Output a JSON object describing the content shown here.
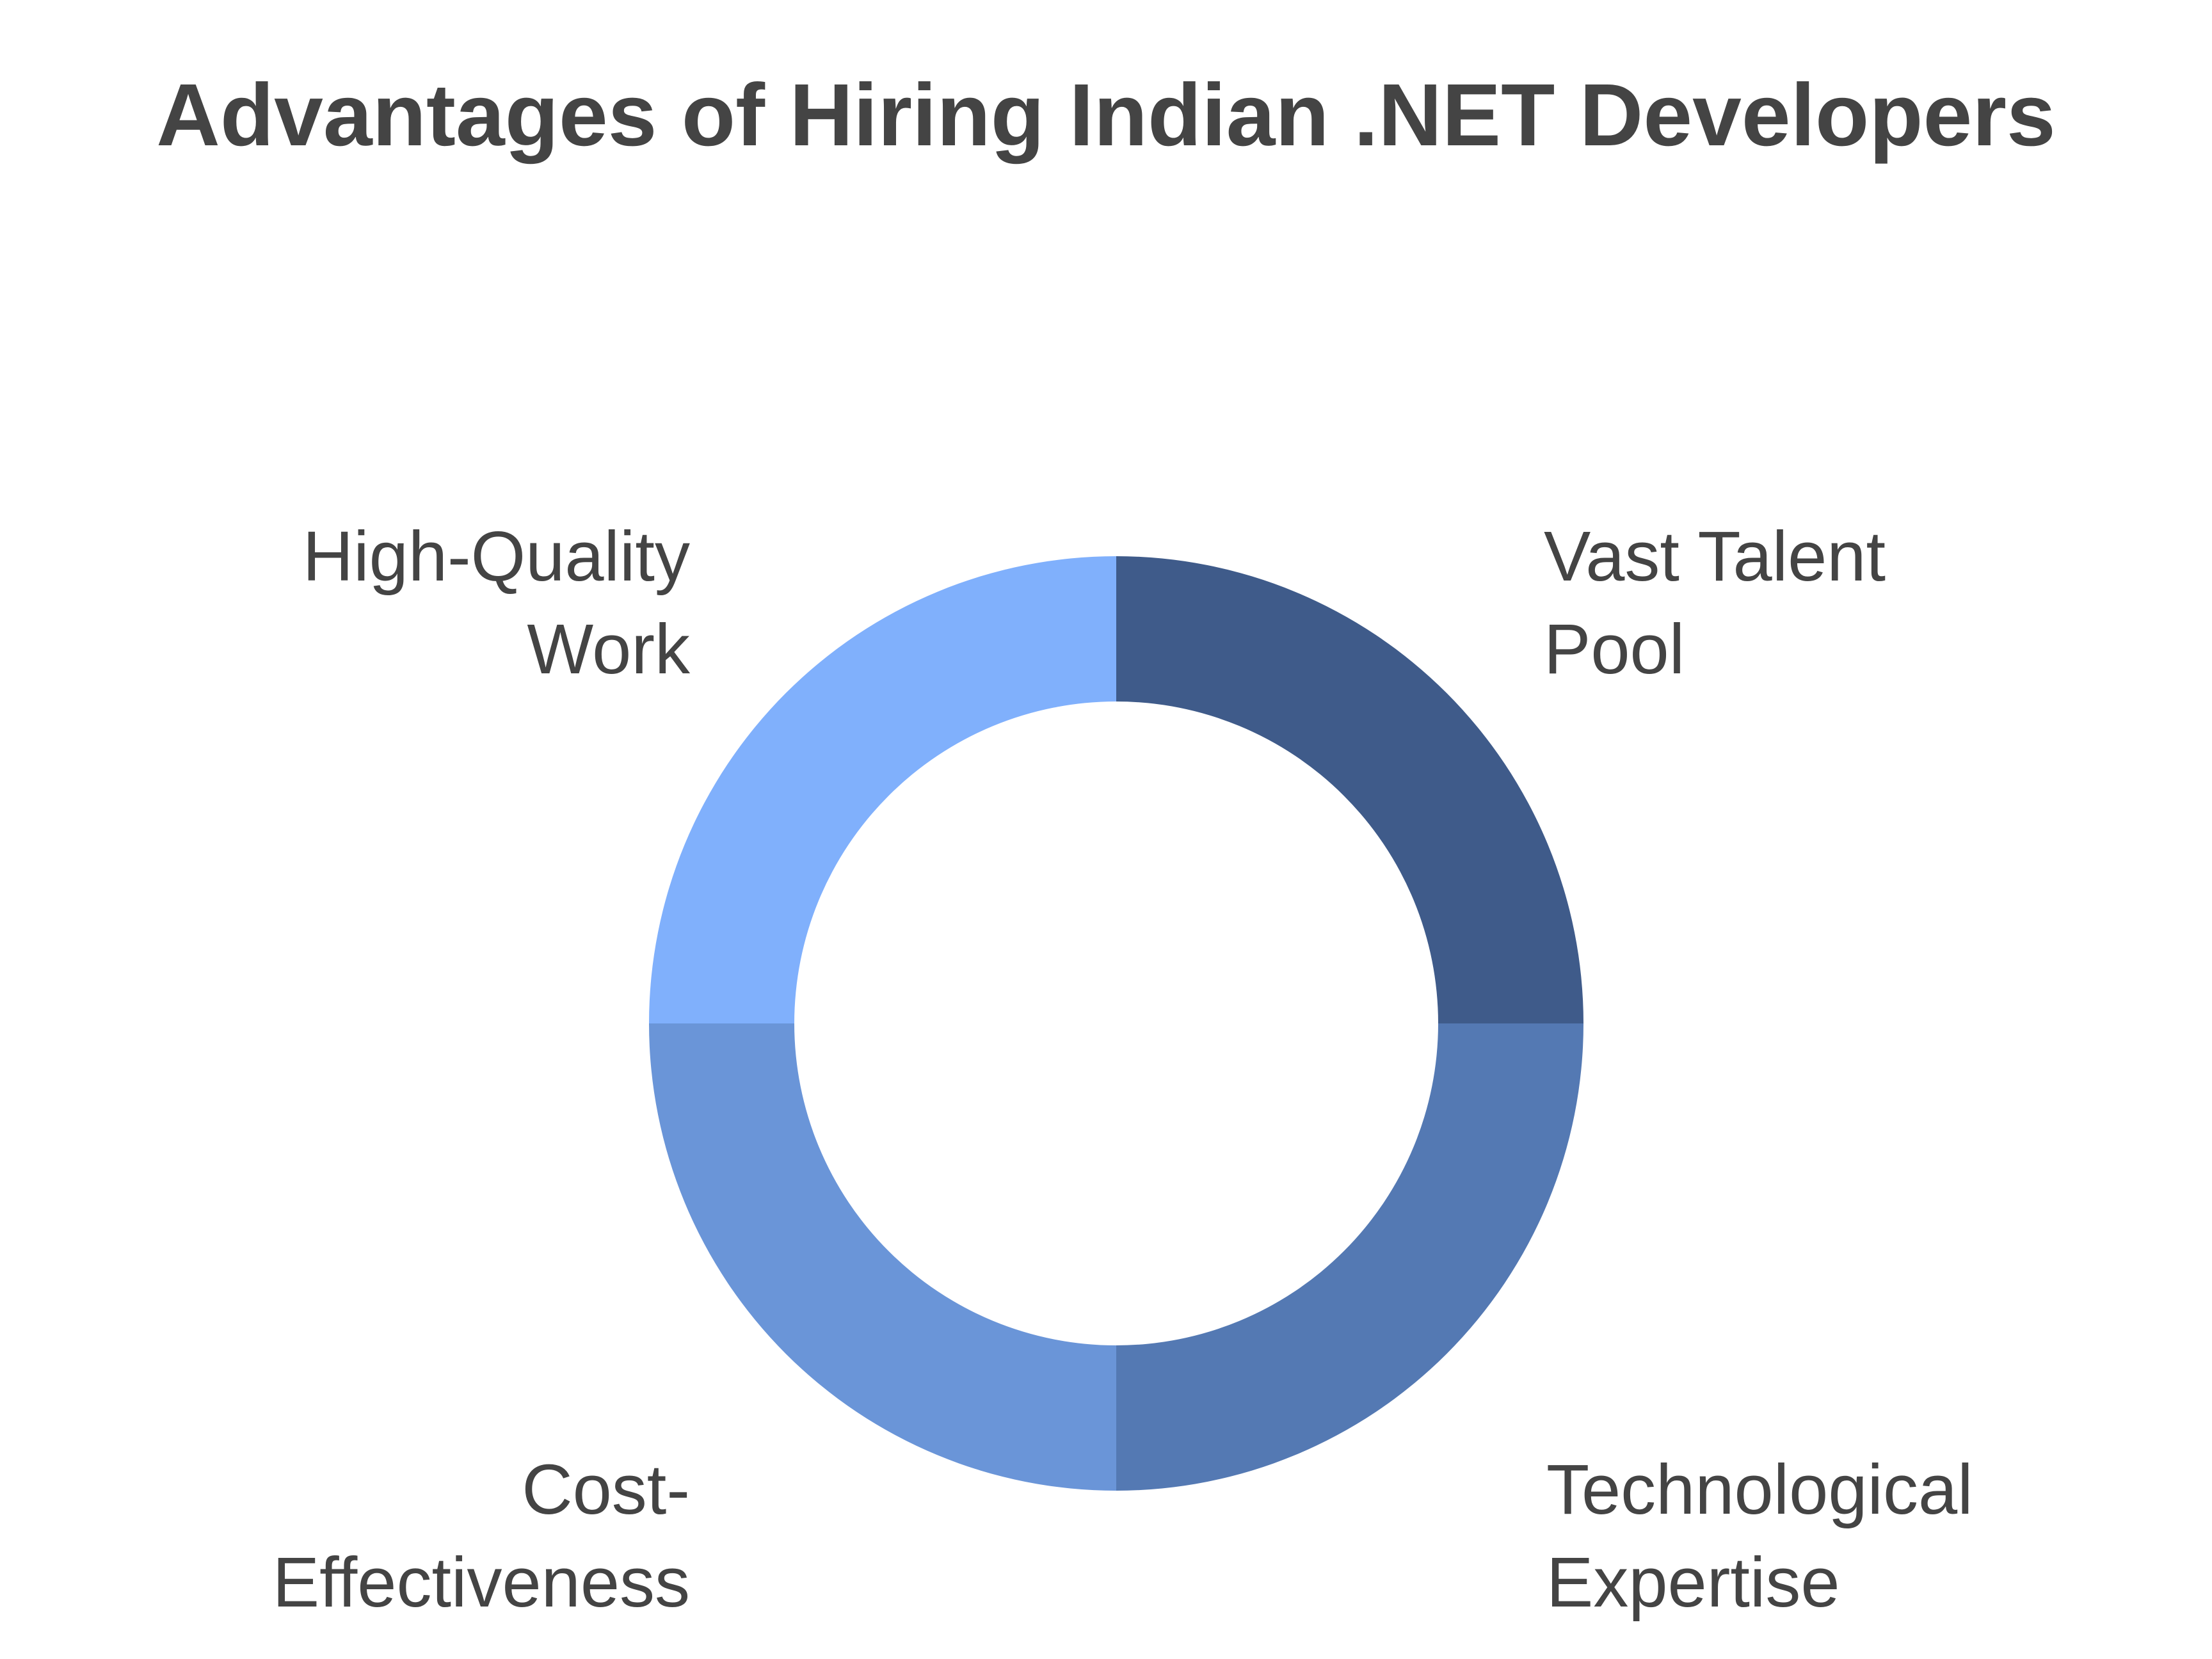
{
  "chart_data": {
    "type": "donut",
    "title": "Advantages of Hiring Indian .NET Developers",
    "categories": [
      "Vast Talent Pool",
      "Technological Expertise",
      "Cost-Effectiveness",
      "High-Quality Work"
    ],
    "values": [
      25,
      25,
      25,
      25
    ],
    "colors": [
      "#3f5b8a",
      "#5479b3",
      "#6a95d8",
      "#80b0fc"
    ]
  }
}
